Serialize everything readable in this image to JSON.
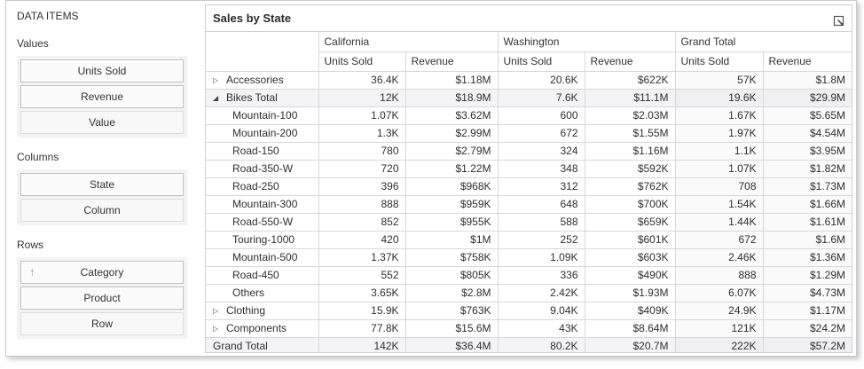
{
  "colors": {
    "grid_border": "#ccd0d6",
    "total_row_bg": "#f4f4f6",
    "grand_total_col_bg": "#fafafb",
    "field_panel_bg": "#f3f3f4",
    "text": "#333333"
  },
  "field_chooser": {
    "title": "DATA ITEMS",
    "groups": [
      {
        "label": "Values",
        "fields": [
          {
            "label": "Units Sold",
            "placeholder": false,
            "sorted": false
          },
          {
            "label": "Revenue",
            "placeholder": false,
            "sorted": false
          },
          {
            "label": "Value",
            "placeholder": true,
            "sorted": false
          }
        ]
      },
      {
        "label": "Columns",
        "fields": [
          {
            "label": "State",
            "placeholder": false,
            "sorted": false
          },
          {
            "label": "Column",
            "placeholder": true,
            "sorted": false
          }
        ]
      },
      {
        "label": "Rows",
        "fields": [
          {
            "label": "Category",
            "placeholder": false,
            "sorted": true,
            "sort_icon": "arrow-up-icon"
          },
          {
            "label": "Product",
            "placeholder": false,
            "sorted": false
          },
          {
            "label": "Row",
            "placeholder": true,
            "sorted": false
          }
        ]
      }
    ]
  },
  "pivot": {
    "title": "Sales by State",
    "export_icon": "export-icon",
    "column_groups": [
      "California",
      "Washington",
      "Grand Total"
    ],
    "measures": [
      "Units Sold",
      "Revenue"
    ],
    "rows": [
      {
        "label": "Accessories",
        "level": 0,
        "expand": "collapsed",
        "type": "row",
        "values": [
          "36.4K",
          "$1.18M",
          "20.6K",
          "$622K",
          "57K",
          "$1.8M"
        ]
      },
      {
        "label": "Bikes Total",
        "level": 0,
        "expand": "expanded",
        "type": "total",
        "values": [
          "12K",
          "$18.9M",
          "7.6K",
          "$11.1M",
          "19.6K",
          "$29.9M"
        ]
      },
      {
        "label": "Mountain-100",
        "level": 1,
        "expand": "none",
        "type": "row",
        "values": [
          "1.07K",
          "$3.62M",
          "600",
          "$2.03M",
          "1.67K",
          "$5.65M"
        ]
      },
      {
        "label": "Mountain-200",
        "level": 1,
        "expand": "none",
        "type": "row",
        "values": [
          "1.3K",
          "$2.99M",
          "672",
          "$1.55M",
          "1.97K",
          "$4.54M"
        ]
      },
      {
        "label": "Road-150",
        "level": 1,
        "expand": "none",
        "type": "row",
        "values": [
          "780",
          "$2.79M",
          "324",
          "$1.16M",
          "1.1K",
          "$3.95M"
        ]
      },
      {
        "label": "Road-350-W",
        "level": 1,
        "expand": "none",
        "type": "row",
        "values": [
          "720",
          "$1.22M",
          "348",
          "$592K",
          "1.07K",
          "$1.82M"
        ]
      },
      {
        "label": "Road-250",
        "level": 1,
        "expand": "none",
        "type": "row",
        "values": [
          "396",
          "$968K",
          "312",
          "$762K",
          "708",
          "$1.73M"
        ]
      },
      {
        "label": "Mountain-300",
        "level": 1,
        "expand": "none",
        "type": "row",
        "values": [
          "888",
          "$959K",
          "648",
          "$700K",
          "1.54K",
          "$1.66M"
        ]
      },
      {
        "label": "Road-550-W",
        "level": 1,
        "expand": "none",
        "type": "row",
        "values": [
          "852",
          "$955K",
          "588",
          "$659K",
          "1.44K",
          "$1.61M"
        ]
      },
      {
        "label": "Touring-1000",
        "level": 1,
        "expand": "none",
        "type": "row",
        "values": [
          "420",
          "$1M",
          "252",
          "$601K",
          "672",
          "$1.6M"
        ]
      },
      {
        "label": "Mountain-500",
        "level": 1,
        "expand": "none",
        "type": "row",
        "values": [
          "1.37K",
          "$758K",
          "1.09K",
          "$603K",
          "2.46K",
          "$1.36M"
        ]
      },
      {
        "label": "Road-450",
        "level": 1,
        "expand": "none",
        "type": "row",
        "values": [
          "552",
          "$805K",
          "336",
          "$490K",
          "888",
          "$1.29M"
        ]
      },
      {
        "label": "Others",
        "level": 1,
        "expand": "none",
        "type": "row",
        "values": [
          "3.65K",
          "$2.8M",
          "2.42K",
          "$1.93M",
          "6.07K",
          "$4.73M"
        ]
      },
      {
        "label": "Clothing",
        "level": 0,
        "expand": "collapsed",
        "type": "row",
        "values": [
          "15.9K",
          "$763K",
          "9.04K",
          "$409K",
          "24.9K",
          "$1.17M"
        ]
      },
      {
        "label": "Components",
        "level": 0,
        "expand": "collapsed",
        "type": "row",
        "values": [
          "77.8K",
          "$15.6M",
          "43K",
          "$8.64M",
          "121K",
          "$24.2M"
        ]
      },
      {
        "label": "Grand Total",
        "level": 0,
        "expand": "none",
        "type": "grand",
        "values": [
          "142K",
          "$36.4M",
          "80.2K",
          "$20.7M",
          "222K",
          "$57.2M"
        ]
      }
    ]
  }
}
